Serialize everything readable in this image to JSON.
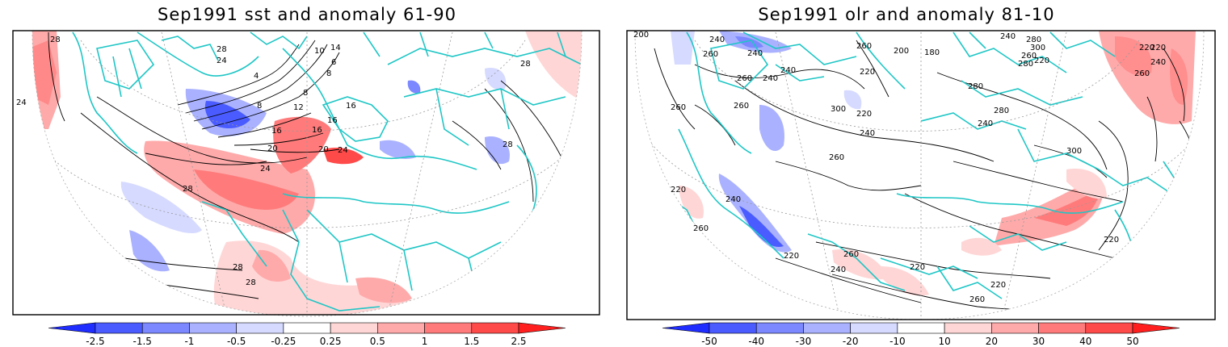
{
  "maps": [
    {
      "title": "Sep1991 sst and anomaly 61-90",
      "colorbar": {
        "labels": [
          "-2.5",
          "-1.5",
          "-1",
          "-0.5",
          "-0.25",
          "0.25",
          "0.5",
          "1",
          "1.5",
          "2.5"
        ],
        "colors": [
          "#1f2dff",
          "#4a5cff",
          "#7b88ff",
          "#aab2ff",
          "#d6daff",
          "#ffffff",
          "#ffd6d6",
          "#ffaaaa",
          "#ff7b7b",
          "#ff4a4a",
          "#ff1f1f"
        ]
      },
      "contour_labels": [
        "28",
        "24",
        "28",
        "24",
        "4",
        "8",
        "8",
        "12",
        "16",
        "16",
        "20",
        "24",
        "24",
        "28",
        "28",
        "28",
        "28",
        "16",
        "8",
        "6",
        "10",
        "14",
        "20",
        "16",
        "28"
      ]
    },
    {
      "title": "Sep1991 olr and anomaly 81-10",
      "colorbar": {
        "labels": [
          "-50",
          "-40",
          "-30",
          "-20",
          "-10",
          "10",
          "20",
          "30",
          "40",
          "50"
        ],
        "colors": [
          "#1f2dff",
          "#4a5cff",
          "#7b88ff",
          "#aab2ff",
          "#d6daff",
          "#ffffff",
          "#ffd6d6",
          "#ffaaaa",
          "#ff7b7b",
          "#ff4a4a",
          "#ff1f1f"
        ]
      },
      "contour_labels": [
        "200",
        "240",
        "260",
        "240",
        "260",
        "200",
        "180",
        "220",
        "240",
        "240",
        "260",
        "280",
        "300",
        "240",
        "220",
        "280",
        "260",
        "220",
        "260",
        "220",
        "240",
        "260",
        "300",
        "280",
        "260",
        "220",
        "240",
        "280",
        "240",
        "260",
        "220",
        "260",
        "240",
        "220",
        "220",
        "220",
        "260",
        "260",
        "300",
        "240",
        "220"
      ]
    }
  ]
}
